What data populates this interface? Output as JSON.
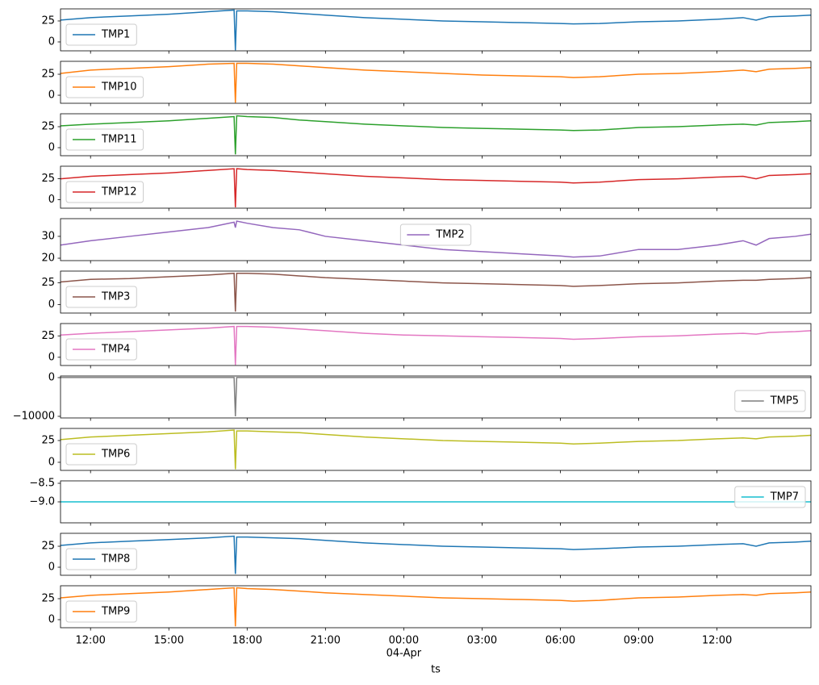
{
  "chart_data": [
    {
      "type": "line",
      "x": [
        -13.15,
        -12,
        -10.5,
        -9,
        -7.5,
        -6.5,
        -6.45,
        -6.4,
        -6,
        -5,
        -4,
        -3,
        -1.5,
        0,
        1.5,
        3,
        4.5,
        6,
        6.5,
        7.5,
        9,
        10.5,
        12,
        13,
        13.5,
        14,
        15,
        15.6
      ],
      "xlim": [
        -13.15,
        15.6
      ],
      "ylim": [
        -10.6,
        39.4
      ],
      "yticks": [
        0,
        25
      ],
      "legend": "lower left",
      "series": [
        {
          "name": "TMP1",
          "color": "#1f77b4",
          "values": [
            26,
            29,
            31,
            33,
            36,
            38,
            -10,
            37,
            37,
            36,
            34,
            32,
            29,
            27,
            25,
            24,
            23,
            22,
            21.5,
            22,
            24,
            25,
            27,
            29,
            26,
            30,
            31,
            32
          ]
        }
      ]
    },
    {
      "type": "line",
      "x": [
        -13.15,
        -12,
        -10.5,
        -9,
        -7.5,
        -6.5,
        -6.45,
        -6.4,
        -6,
        -5,
        -4,
        -3,
        -1.5,
        0,
        1.5,
        3,
        4.5,
        6,
        6.5,
        7.5,
        9,
        10.5,
        12,
        13,
        13.5,
        14,
        15,
        15.6
      ],
      "xlim": [
        -13.15,
        15.6
      ],
      "ylim": [
        -9.6,
        40.4
      ],
      "yticks": [
        0,
        25
      ],
      "legend": "lower left",
      "series": [
        {
          "name": "TMP10",
          "color": "#ff7f0e",
          "values": [
            26,
            30,
            32,
            34,
            37,
            38,
            -9,
            38,
            38,
            37,
            35,
            33,
            30,
            28,
            26,
            24,
            23,
            22,
            21,
            22,
            25,
            26,
            28,
            30,
            28,
            31,
            32,
            33
          ]
        }
      ]
    },
    {
      "type": "line",
      "x": [
        -13.15,
        -12,
        -10.5,
        -9,
        -7.5,
        -6.5,
        -6.45,
        -6.4,
        -6,
        -5,
        -4,
        -3,
        -1.5,
        0,
        1.5,
        3,
        4.5,
        6,
        6.5,
        7.5,
        9,
        10.5,
        12,
        13,
        13.5,
        14,
        15,
        15.6
      ],
      "xlim": [
        -13.15,
        15.6
      ],
      "ylim": [
        -9.6,
        40.4
      ],
      "yticks": [
        0,
        25
      ],
      "legend": "lower left",
      "series": [
        {
          "name": "TMP11",
          "color": "#2ca02c",
          "values": [
            26,
            28,
            30,
            32,
            35,
            37,
            -8,
            38,
            37,
            36,
            33,
            31,
            28,
            26,
            24,
            23,
            22,
            21,
            20.5,
            21,
            24,
            25,
            27,
            28,
            27,
            30,
            31,
            32
          ]
        }
      ]
    },
    {
      "type": "line",
      "x": [
        -13.15,
        -12,
        -10.5,
        -9,
        -7.5,
        -6.5,
        -6.45,
        -6.4,
        -6,
        -5,
        -4,
        -3,
        -1.5,
        0,
        1.5,
        3,
        4.5,
        6,
        6.5,
        7.5,
        9,
        10.5,
        12,
        13,
        13.5,
        14,
        15,
        15.6
      ],
      "xlim": [
        -13.15,
        15.6
      ],
      "ylim": [
        -10.0,
        40.0
      ],
      "yticks": [
        0,
        25
      ],
      "legend": "lower left",
      "series": [
        {
          "name": "TMP12",
          "color": "#d62728",
          "values": [
            25,
            28,
            30,
            32,
            35,
            37,
            -9,
            37,
            36,
            35,
            33,
            31,
            28,
            26,
            24,
            23,
            22,
            21,
            20,
            21,
            24,
            25,
            27,
            28,
            25,
            29,
            30,
            31
          ]
        }
      ]
    },
    {
      "type": "line",
      "x": [
        -13.15,
        -12,
        -10.5,
        -9,
        -7.5,
        -6.5,
        -6.45,
        -6.4,
        -6,
        -5,
        -4,
        -3,
        -1.5,
        0,
        1.5,
        3,
        4.5,
        6,
        6.5,
        7.5,
        9,
        10.5,
        12,
        13,
        13.5,
        14,
        15,
        15.6
      ],
      "xlim": [
        -13.15,
        15.6
      ],
      "ylim": [
        18.9,
        38.1
      ],
      "yticks": [
        20,
        30
      ],
      "legend": "upper center",
      "series": [
        {
          "name": "TMP2",
          "color": "#9467bd",
          "values": [
            26,
            28,
            30,
            32,
            34,
            36.5,
            34,
            37,
            36,
            34,
            33,
            30,
            28,
            26,
            24,
            23,
            22,
            21,
            20.5,
            21,
            24,
            24,
            26,
            28,
            26,
            29,
            30,
            31
          ]
        }
      ]
    },
    {
      "type": "line",
      "x": [
        -13.15,
        -12,
        -10.5,
        -9,
        -7.5,
        -6.5,
        -6.45,
        -6.4,
        -6,
        -5,
        -4,
        -3,
        -1.5,
        0,
        1.5,
        3,
        4.5,
        6,
        6.5,
        7.5,
        9,
        10.5,
        12,
        13,
        13.5,
        14,
        15,
        15.6
      ],
      "xlim": [
        -13.15,
        15.6
      ],
      "ylim": [
        -9.6,
        38.5
      ],
      "yticks": [
        0,
        25
      ],
      "legend": "lower left",
      "series": [
        {
          "name": "TMP3",
          "color": "#8c564b",
          "values": [
            26,
            29,
            30,
            32,
            34,
            36,
            -8,
            36,
            36,
            35,
            33,
            31,
            29,
            27,
            25,
            24,
            23,
            22,
            21,
            22,
            24,
            25,
            27,
            28,
            28,
            29,
            30,
            31
          ]
        }
      ]
    },
    {
      "type": "line",
      "x": [
        -13.15,
        -12,
        -10.5,
        -9,
        -7.5,
        -6.5,
        -6.45,
        -6.4,
        -6,
        -5,
        -4,
        -3,
        -1.5,
        0,
        1.5,
        3,
        4.5,
        6,
        6.5,
        7.5,
        9,
        10.5,
        12,
        13,
        13.5,
        14,
        15,
        15.6
      ],
      "xlim": [
        -13.15,
        15.6
      ],
      "ylim": [
        -9.6,
        39.4
      ],
      "yticks": [
        0,
        25
      ],
      "legend": "lower left",
      "series": [
        {
          "name": "TMP4",
          "color": "#e377c2",
          "values": [
            26,
            28,
            30,
            32,
            34,
            36,
            -9,
            36,
            36,
            35,
            33,
            31,
            28,
            26,
            25,
            24,
            23,
            22,
            21,
            22,
            24,
            25,
            27,
            28,
            27,
            29,
            30,
            31
          ]
        }
      ]
    },
    {
      "type": "line",
      "x": [
        -13.15,
        -12,
        -10.5,
        -9,
        -7.5,
        -6.5,
        -6.45,
        -6.4,
        -6,
        -5,
        -4,
        -3,
        -1.5,
        0,
        1.5,
        3,
        4.5,
        6,
        6.5,
        7.5,
        9,
        10.5,
        12,
        13,
        13.5,
        14,
        15,
        15.6
      ],
      "xlim": [
        -13.15,
        15.6
      ],
      "ylim": [
        -10420,
        420
      ],
      "yticks": [
        {
          "value": -10000,
          "label": "−10000"
        },
        0
      ],
      "legend": "center right",
      "series": [
        {
          "name": "TMP5",
          "color": "#7f7f7f",
          "values": [
            25,
            25,
            25,
            25,
            25,
            25,
            -10000,
            25,
            25,
            25,
            25,
            25,
            25,
            25,
            25,
            25,
            25,
            25,
            25,
            25,
            25,
            25,
            25,
            25,
            25,
            25,
            25,
            25
          ]
        }
      ]
    },
    {
      "type": "line",
      "x": [
        -13.15,
        -12,
        -10.5,
        -9,
        -7.5,
        -6.5,
        -6.45,
        -6.4,
        -6,
        -5,
        -4,
        -3,
        -1.5,
        0,
        1.5,
        3,
        4.5,
        6,
        6.5,
        7.5,
        9,
        10.5,
        12,
        13,
        13.5,
        14,
        15,
        15.6
      ],
      "xlim": [
        -13.15,
        15.6
      ],
      "ylim": [
        -9.3,
        38.9
      ],
      "yticks": [
        0,
        25
      ],
      "legend": "lower left",
      "series": [
        {
          "name": "TMP6",
          "color": "#bcbd22",
          "values": [
            26,
            29,
            31,
            33,
            35,
            37,
            -8,
            36,
            36,
            35,
            34,
            32,
            29,
            27,
            25,
            24,
            23,
            22,
            21,
            22,
            24,
            25,
            27,
            28,
            27,
            29,
            30,
            31
          ]
        }
      ]
    },
    {
      "type": "line",
      "x": [
        -13.15,
        -12,
        -10.5,
        -9,
        -7.5,
        -6.5,
        -6.45,
        -6.4,
        -6,
        -5,
        -4,
        -3,
        -1.5,
        0,
        1.5,
        3,
        4.5,
        6,
        6.5,
        7.5,
        9,
        10.5,
        12,
        13,
        13.5,
        14,
        15,
        15.6
      ],
      "xlim": [
        -13.15,
        15.6
      ],
      "ylim": [
        -9.565,
        -8.435
      ],
      "yticks": [
        {
          "value": -9.0,
          "label": "−9.0"
        },
        {
          "value": -8.5,
          "label": "−8.5"
        }
      ],
      "legend": "upper right",
      "series": [
        {
          "name": "TMP7",
          "color": "#17becf",
          "values": [
            -9,
            -9,
            -9,
            -9,
            -9,
            -9,
            -9,
            -9,
            -9,
            -9,
            -9,
            -9,
            -9,
            -9,
            -9,
            -9,
            -9,
            -9,
            -9,
            -9,
            -9,
            -9,
            -9,
            -9,
            -9,
            -9,
            -9,
            -9
          ]
        }
      ]
    },
    {
      "type": "line",
      "x": [
        -13.15,
        -12,
        -10.5,
        -9,
        -7.5,
        -6.5,
        -6.45,
        -6.4,
        -6,
        -5,
        -4,
        -3,
        -1.5,
        0,
        1.5,
        3,
        4.5,
        6,
        6.5,
        7.5,
        9,
        10.5,
        12,
        13,
        13.5,
        14,
        15,
        15.6
      ],
      "xlim": [
        -13.15,
        15.6
      ],
      "ylim": [
        -9.6,
        40.4
      ],
      "yticks": [
        0,
        25
      ],
      "legend": "lower left",
      "series": [
        {
          "name": "TMP8",
          "color": "#1f77b4",
          "values": [
            26,
            29,
            31,
            33,
            35,
            37,
            -8,
            36,
            36,
            35,
            34,
            32,
            29,
            27,
            25,
            24,
            23,
            22,
            21,
            22,
            24,
            25,
            27,
            28,
            25,
            29,
            30,
            31
          ]
        }
      ]
    },
    {
      "type": "line",
      "x": [
        -13.15,
        -12,
        -10.5,
        -9,
        -7.5,
        -6.5,
        -6.45,
        -6.4,
        -6,
        -5,
        -4,
        -3,
        -1.5,
        0,
        1.5,
        3,
        4.5,
        6,
        6.5,
        7.5,
        9,
        10.5,
        12,
        13,
        13.5,
        14,
        15,
        15.6
      ],
      "xlim": [
        -13.15,
        15.6
      ],
      "ylim": [
        -9.6,
        40.4
      ],
      "yticks": [
        0,
        25
      ],
      "legend": "lower left",
      "xticks": [
        {
          "value": -12,
          "label": "12:00"
        },
        {
          "value": -9,
          "label": "15:00"
        },
        {
          "value": -6,
          "label": "18:00"
        },
        {
          "value": -3,
          "label": "21:00"
        },
        {
          "value": 0,
          "label": "00:00"
        },
        {
          "value": 3,
          "label": "03:00"
        },
        {
          "value": 6,
          "label": "06:00"
        },
        {
          "value": 9,
          "label": "09:00"
        },
        {
          "value": 12,
          "label": "12:00"
        }
      ],
      "date_label": "04-Apr",
      "xlabel": "ts",
      "series": [
        {
          "name": "TMP9",
          "color": "#ff7f0e",
          "values": [
            26,
            29,
            31,
            33,
            36,
            38,
            -8,
            38,
            37,
            36,
            34,
            32,
            30,
            28,
            26,
            25,
            24,
            23,
            22,
            23,
            26,
            27,
            29,
            30,
            29,
            31,
            32,
            33
          ]
        }
      ]
    }
  ]
}
